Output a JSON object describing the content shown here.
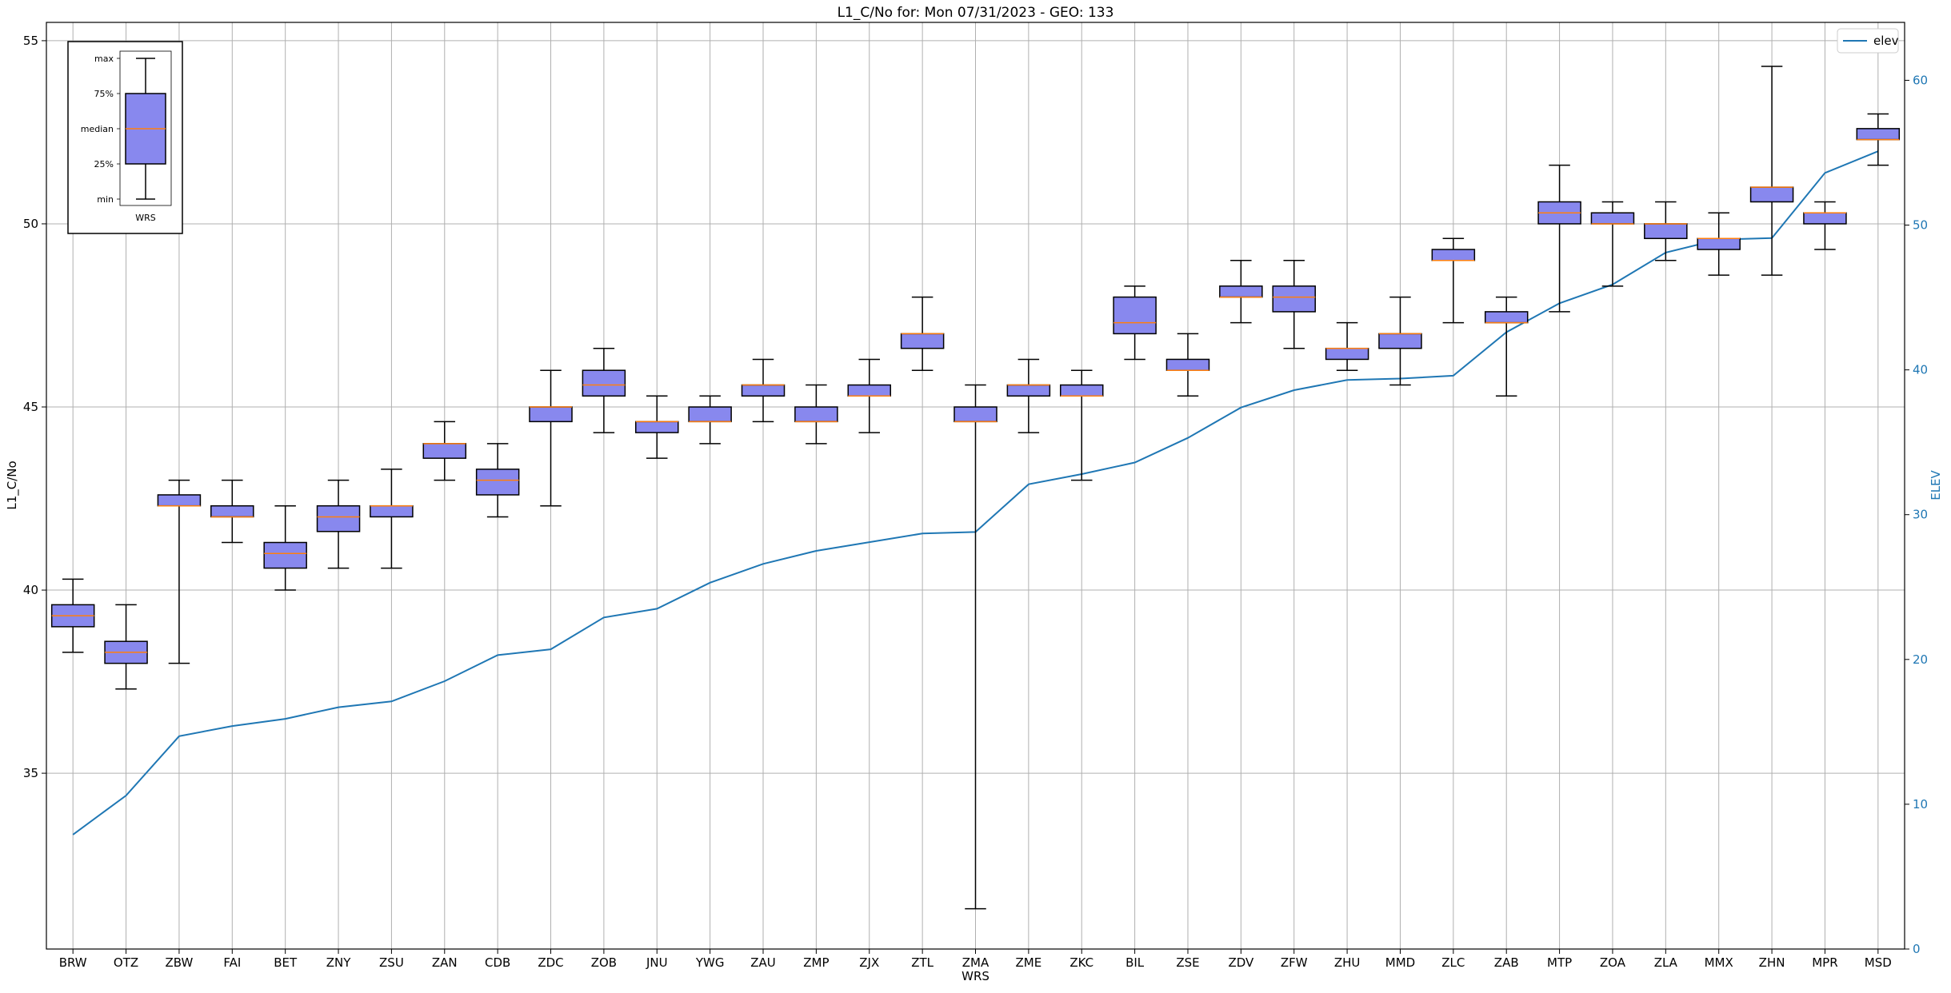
{
  "chart_data": {
    "type": "box",
    "title": "L1_C/No for: Mon 07/31/2023 - GEO: 133",
    "xlabel": "WRS",
    "ylabel": "L1_C/No",
    "y2label": "ELEV",
    "ylim": [
      30.2,
      55.5
    ],
    "y2lim": [
      0,
      64
    ],
    "yticks": [
      35,
      40,
      45,
      50,
      55
    ],
    "y2ticks": [
      0,
      10,
      20,
      30,
      40,
      50,
      60
    ],
    "grid": true,
    "colors": {
      "box_fill": "#8888ee",
      "median": "#ff7f0e",
      "elev_line": "#1f77b4",
      "whisker": "#000000"
    },
    "categories": [
      "BRW",
      "OTZ",
      "ZBW",
      "FAI",
      "BET",
      "ZNY",
      "ZSU",
      "ZAN",
      "CDB",
      "ZDC",
      "ZOB",
      "JNU",
      "YWG",
      "ZAU",
      "ZMP",
      "ZJX",
      "ZTL",
      "ZMA",
      "ZME",
      "ZKC",
      "BIL",
      "ZSE",
      "ZDV",
      "ZFW",
      "ZHU",
      "MMD",
      "ZLC",
      "ZAB",
      "MTP",
      "ZOA",
      "ZLA",
      "MMX",
      "ZHN",
      "MPR",
      "MSD"
    ],
    "boxes": [
      {
        "min": 38.3,
        "q1": 39.0,
        "median": 39.3,
        "q3": 39.6,
        "max": 40.3
      },
      {
        "min": 37.3,
        "q1": 38.0,
        "median": 38.3,
        "q3": 38.6,
        "max": 39.6
      },
      {
        "min": 38.0,
        "q1": 42.3,
        "median": 42.3,
        "q3": 42.6,
        "max": 43.0
      },
      {
        "min": 41.3,
        "q1": 42.0,
        "median": 42.0,
        "q3": 42.3,
        "max": 43.0
      },
      {
        "min": 40.0,
        "q1": 40.6,
        "median": 41.0,
        "q3": 41.3,
        "max": 42.3
      },
      {
        "min": 40.6,
        "q1": 41.6,
        "median": 42.0,
        "q3": 42.3,
        "max": 43.0
      },
      {
        "min": 40.6,
        "q1": 42.0,
        "median": 42.3,
        "q3": 42.3,
        "max": 43.3
      },
      {
        "min": 43.0,
        "q1": 43.6,
        "median": 44.0,
        "q3": 44.0,
        "max": 44.6
      },
      {
        "min": 42.0,
        "q1": 42.6,
        "median": 43.0,
        "q3": 43.3,
        "max": 44.0
      },
      {
        "min": 42.3,
        "q1": 44.6,
        "median": 45.0,
        "q3": 45.0,
        "max": 46.0
      },
      {
        "min": 44.3,
        "q1": 45.3,
        "median": 45.6,
        "q3": 46.0,
        "max": 46.6
      },
      {
        "min": 43.6,
        "q1": 44.3,
        "median": 44.6,
        "q3": 44.6,
        "max": 45.3
      },
      {
        "min": 44.0,
        "q1": 44.6,
        "median": 44.6,
        "q3": 45.0,
        "max": 45.3
      },
      {
        "min": 44.6,
        "q1": 45.3,
        "median": 45.6,
        "q3": 45.6,
        "max": 46.3
      },
      {
        "min": 44.0,
        "q1": 44.6,
        "median": 44.6,
        "q3": 45.0,
        "max": 45.6
      },
      {
        "min": 44.3,
        "q1": 45.3,
        "median": 45.3,
        "q3": 45.6,
        "max": 46.3
      },
      {
        "min": 46.0,
        "q1": 46.6,
        "median": 47.0,
        "q3": 47.0,
        "max": 48.0
      },
      {
        "min": 31.3,
        "q1": 44.6,
        "median": 44.6,
        "q3": 45.0,
        "max": 45.6
      },
      {
        "min": 44.3,
        "q1": 45.3,
        "median": 45.6,
        "q3": 45.6,
        "max": 46.3
      },
      {
        "min": 43.0,
        "q1": 45.3,
        "median": 45.3,
        "q3": 45.6,
        "max": 46.0
      },
      {
        "min": 46.3,
        "q1": 47.0,
        "median": 47.3,
        "q3": 48.0,
        "max": 48.3
      },
      {
        "min": 45.3,
        "q1": 46.0,
        "median": 46.0,
        "q3": 46.3,
        "max": 47.0
      },
      {
        "min": 47.3,
        "q1": 48.0,
        "median": 48.0,
        "q3": 48.3,
        "max": 49.0
      },
      {
        "min": 46.6,
        "q1": 47.6,
        "median": 48.0,
        "q3": 48.3,
        "max": 49.0
      },
      {
        "min": 46.0,
        "q1": 46.3,
        "median": 46.6,
        "q3": 46.6,
        "max": 47.3
      },
      {
        "min": 45.6,
        "q1": 46.6,
        "median": 47.0,
        "q3": 47.0,
        "max": 48.0
      },
      {
        "min": 47.3,
        "q1": 49.0,
        "median": 49.0,
        "q3": 49.3,
        "max": 49.6
      },
      {
        "min": 45.3,
        "q1": 47.3,
        "median": 47.3,
        "q3": 47.6,
        "max": 48.0
      },
      {
        "min": 47.6,
        "q1": 50.0,
        "median": 50.3,
        "q3": 50.6,
        "max": 51.6
      },
      {
        "min": 48.3,
        "q1": 50.0,
        "median": 50.0,
        "q3": 50.3,
        "max": 50.6
      },
      {
        "min": 49.0,
        "q1": 49.6,
        "median": 50.0,
        "q3": 50.0,
        "max": 50.6
      },
      {
        "min": 48.6,
        "q1": 49.3,
        "median": 49.6,
        "q3": 49.6,
        "max": 50.3
      },
      {
        "min": 48.6,
        "q1": 50.6,
        "median": 51.0,
        "q3": 51.0,
        "max": 54.3
      },
      {
        "min": 49.3,
        "q1": 50.0,
        "median": 50.3,
        "q3": 50.3,
        "max": 50.6
      },
      {
        "min": 51.6,
        "q1": 52.3,
        "median": 52.3,
        "q3": 52.6,
        "max": 53.0
      }
    ],
    "elev": {
      "name": "elev",
      "values": [
        7.9,
        10.6,
        14.7,
        15.4,
        15.9,
        16.7,
        17.1,
        18.5,
        20.3,
        20.7,
        22.9,
        23.5,
        25.3,
        26.6,
        27.5,
        28.1,
        28.7,
        28.8,
        32.1,
        32.8,
        33.6,
        35.3,
        37.4,
        38.6,
        39.3,
        39.4,
        39.6,
        42.6,
        44.6,
        45.9,
        48.1,
        49.0,
        49.1,
        53.6,
        55.1
      ]
    },
    "legend": {
      "location": "upper right",
      "entries": [
        "elev"
      ]
    },
    "inset_legend": {
      "location": "upper left",
      "labels": [
        "max",
        "75%",
        "median",
        "25%",
        "min"
      ],
      "xlabel": "WRS"
    }
  }
}
